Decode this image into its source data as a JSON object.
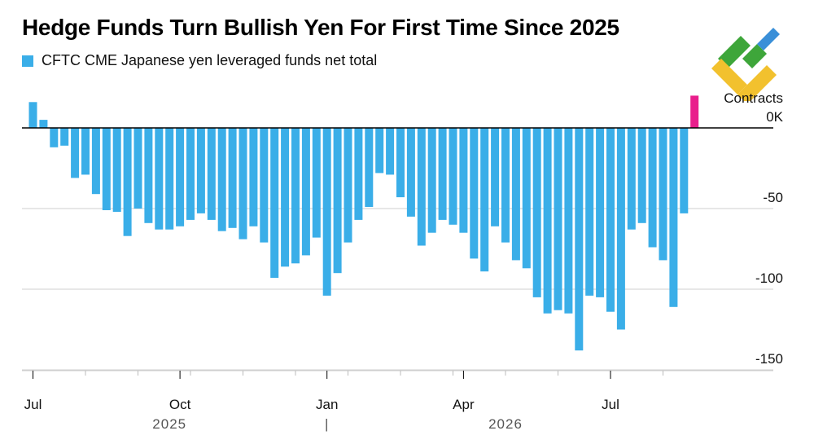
{
  "title": "Hedge Funds Turn Bullish Yen For First Time Since 2025",
  "legend": {
    "label": "CFTC CME Japanese yen leveraged funds net total",
    "color": "#3aaee8"
  },
  "logo": {
    "icon": "liteforex-logo-icon",
    "colors": [
      "#3ea63a",
      "#3a8fd8",
      "#f2c12e"
    ]
  },
  "chart_data": {
    "type": "bar",
    "series": [
      {
        "name": "CFTC CME Japanese yen leveraged funds net total",
        "color": "#3aaee8",
        "highlight_color": "#e91e8c",
        "values": [
          16,
          5,
          -12,
          -11,
          -31,
          -29,
          -41,
          -51,
          -52,
          -67,
          -50,
          -59,
          -63,
          -63,
          -61,
          -57,
          -53,
          -57,
          -64,
          -62,
          -69,
          -61,
          -71,
          -93,
          -86,
          -84,
          -79,
          -68,
          -104,
          -90,
          -71,
          -57,
          -49,
          -28,
          -29,
          -43,
          -55,
          -73,
          -65,
          -57,
          -60,
          -65,
          -81,
          -89,
          -61,
          -71,
          -82,
          -87,
          -105,
          -115,
          -113,
          -115,
          -138,
          -104,
          -105,
          -114,
          -125,
          -63,
          -59,
          -74,
          -82,
          -111,
          -53,
          20
        ]
      }
    ],
    "y_axis": {
      "unit_label": "Contracts",
      "ticks": [
        "0K",
        "-50",
        "-100",
        "-150"
      ],
      "tick_values": [
        0,
        -50,
        -100,
        -150
      ],
      "range": [
        -150,
        20
      ],
      "position": "right",
      "gridlines": true
    },
    "x_axis": {
      "ticks": [
        "Jul",
        "Oct",
        "Jan",
        "Apr",
        "Jul"
      ],
      "tick_bar_index": [
        0,
        14,
        28,
        41,
        55
      ],
      "years": [
        "2025",
        "2026"
      ],
      "year_divider": "|"
    }
  }
}
